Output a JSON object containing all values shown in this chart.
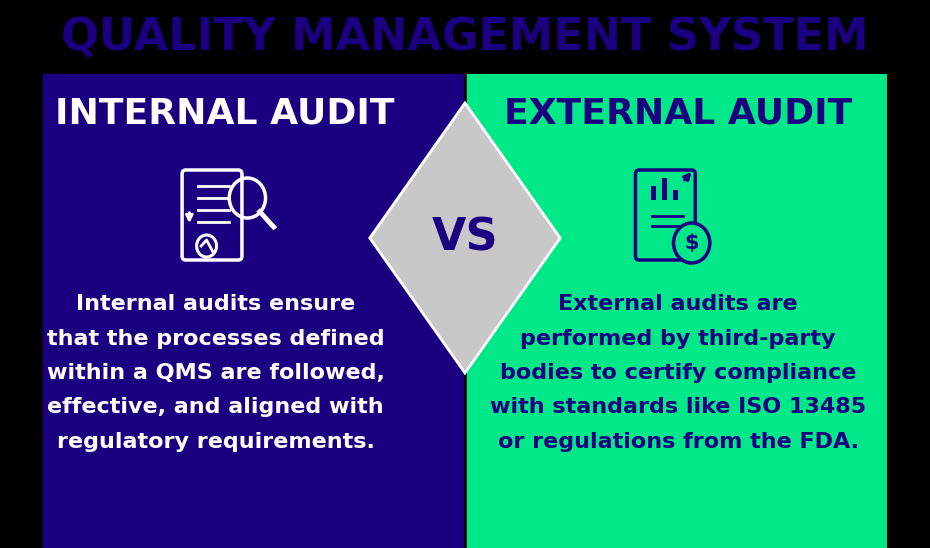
{
  "title": "QUALITY MANAGEMENT SYSTEM",
  "title_color": "#1a0080",
  "title_fontsize": 32,
  "bg_color": "#000000",
  "left_bg": "#1a0080",
  "right_bg": "#00e887",
  "left_header": "INTERNAL AUDIT",
  "right_header": "EXTERNAL AUDIT",
  "left_header_color": "#ffffff",
  "right_header_color": "#1a0080",
  "header_fontsize": 26,
  "vs_text": "VS",
  "vs_bg": "#c8c8c8",
  "vs_color": "#1a0080",
  "vs_fontsize": 32,
  "left_body": "Internal audits ensure\nthat the processes defined\nwithin a QMS are followed,\neffective, and aligned with\nregulatory requirements.",
  "right_body": "External audits are\nperformed by third-party\nbodies to certify compliance\nwith standards like ISO 13485\nor regulations from the FDA.",
  "left_body_color": "#ffffff",
  "right_body_color": "#1a0080",
  "body_fontsize": 16,
  "diamond_color": "#c8c8c8",
  "diamond_edge_color": "#ffffff",
  "icon_color_left": "#ffffff",
  "icon_color_right": "#1a0080"
}
